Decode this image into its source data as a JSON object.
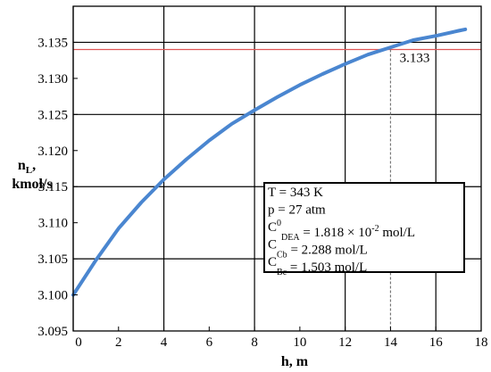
{
  "chart_data": {
    "type": "line",
    "xlabel": "h, m",
    "ylabel_line1": "n",
    "ylabel_sub": "L",
    "ylabel_line1_suffix": ",",
    "ylabel_line2": "kmol/s",
    "xlim": [
      0,
      18
    ],
    "ylim": [
      3.095,
      3.14
    ],
    "x_ticks": [
      0,
      2,
      4,
      6,
      8,
      10,
      12,
      14,
      16,
      18
    ],
    "x_tick_labels": [
      "0",
      "2",
      "4",
      "6",
      "8",
      "10",
      "12",
      "14",
      "16",
      "18"
    ],
    "y_ticks": [
      3.095,
      3.1,
      3.105,
      3.11,
      3.115,
      3.12,
      3.125,
      3.13,
      3.135
    ],
    "y_tick_labels": [
      "3.095",
      "3.100",
      "3.105",
      "3.110",
      "3.115",
      "3.120",
      "3.125",
      "3.130",
      "3.135"
    ],
    "grid_x": [
      0,
      4,
      8,
      12,
      16
    ],
    "grid_y": [
      3.105,
      3.115,
      3.125,
      3.135
    ],
    "series": [
      {
        "color": "#4a86d0",
        "x": [
          0,
          1,
          2,
          3,
          4,
          5,
          6,
          7,
          8,
          9,
          10,
          11,
          12,
          13,
          14,
          15,
          16,
          17,
          17.3
        ],
        "y": [
          3.1,
          3.1048,
          3.1092,
          3.1128,
          3.116,
          3.1188,
          3.1214,
          3.1237,
          3.1256,
          3.1274,
          3.1291,
          3.1306,
          3.132,
          3.1333,
          3.1343,
          3.1353,
          3.1359,
          3.1366,
          3.1368
        ]
      }
    ],
    "reference_line": {
      "y": 3.134,
      "color": "#e05555"
    },
    "reference_vline": {
      "x": 14
    },
    "annotation": {
      "text": "3.133",
      "x": 14.4,
      "y": 3.1323
    },
    "legend": {
      "placement": "bottom-right",
      "lines": [
        {
          "main": "T = 343 K"
        },
        {
          "main": "p = 27 atm"
        },
        {
          "pre": "C",
          "sup": "0",
          "sub": "DEA",
          "post": " = 1.818 × 10",
          "sup2": "-2",
          "post2": " mol/L"
        },
        {
          "pre": "C",
          "sub": "Cb",
          "post": " = 2.288 mol/L"
        },
        {
          "pre": "C",
          "sub": "Bc",
          "post": " = 1.503 mol/L"
        }
      ]
    }
  }
}
